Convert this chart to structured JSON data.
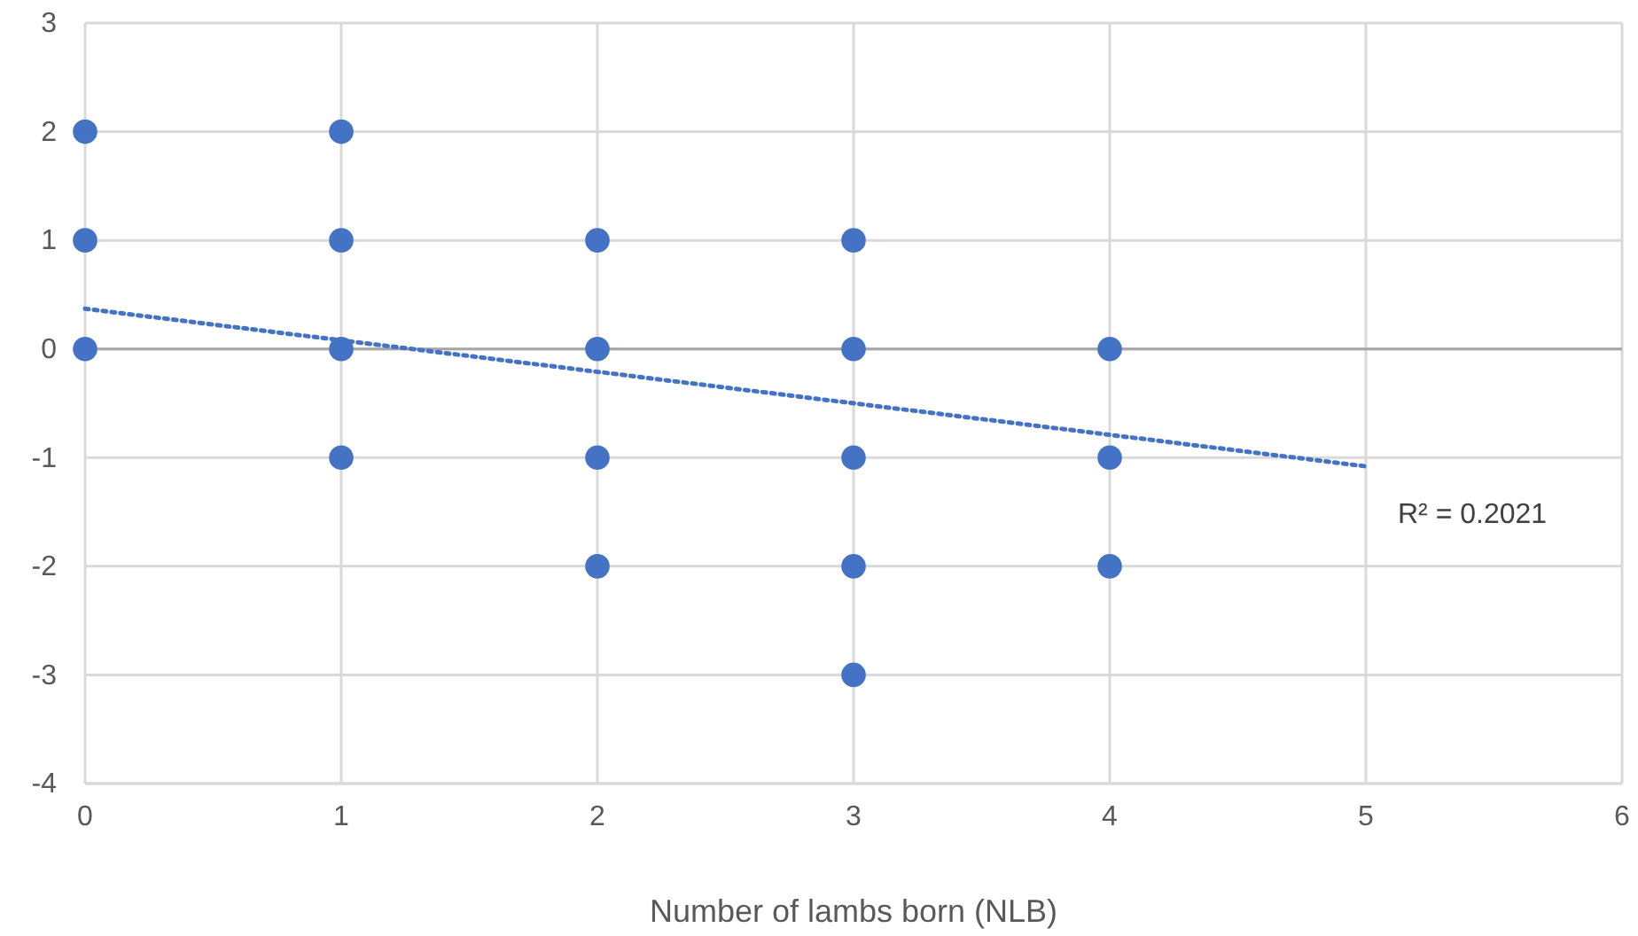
{
  "chart_data": {
    "type": "scatter",
    "xlabel": "Number of lambs born (NLB)",
    "xlim": [
      0,
      6
    ],
    "ylim": [
      -4,
      3
    ],
    "xticks": [
      0,
      1,
      2,
      3,
      4,
      5,
      6
    ],
    "yticks": [
      -4,
      -3,
      -2,
      -1,
      0,
      1,
      2,
      3
    ],
    "grid": true,
    "marker": "circle",
    "series": [
      {
        "color": "#4472c4",
        "x": [
          0,
          0,
          0,
          1,
          1,
          1,
          1,
          2,
          2,
          2,
          2,
          3,
          3,
          3,
          3,
          3,
          4,
          4,
          4
        ],
        "values": [
          2,
          1,
          0,
          2,
          1,
          0,
          -1,
          1,
          0,
          -1,
          -2,
          1,
          0,
          -1,
          -2,
          -3,
          0,
          -1,
          -2
        ]
      },
      {
        "type": "line",
        "color": "#4472c4",
        "line_style": "dotted",
        "marker": "none",
        "x": [
          0,
          5
        ],
        "values": [
          0.37,
          -1.08
        ]
      }
    ],
    "annotations": [
      {
        "text": "R² = 0.2021",
        "x": 5,
        "y": -1.08
      }
    ]
  }
}
